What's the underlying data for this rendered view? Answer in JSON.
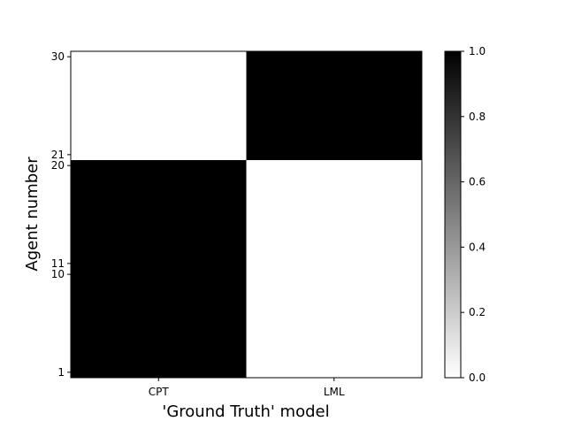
{
  "chart_data": {
    "type": "heatmap",
    "xlabel": "'Ground Truth' model",
    "ylabel": "Agent number",
    "x_categories": [
      "CPT",
      "LML"
    ],
    "y_ticks": [
      "1",
      "10",
      "11",
      "20",
      "21",
      "30"
    ],
    "y_range": [
      1,
      30
    ],
    "matrix": [
      {
        "agents": "1-20",
        "y_from": 1,
        "y_to": 20,
        "values": [
          1,
          0
        ]
      },
      {
        "agents": "21-30",
        "y_from": 21,
        "y_to": 30,
        "values": [
          0,
          1
        ]
      }
    ],
    "colorbar": {
      "min": 0.0,
      "max": 1.0,
      "ticks": [
        "0.0",
        "0.2",
        "0.4",
        "0.6",
        "0.8",
        "1.0"
      ],
      "colormap": "gray_r",
      "low_color": "#ffffff",
      "high_color": "#000000"
    }
  }
}
